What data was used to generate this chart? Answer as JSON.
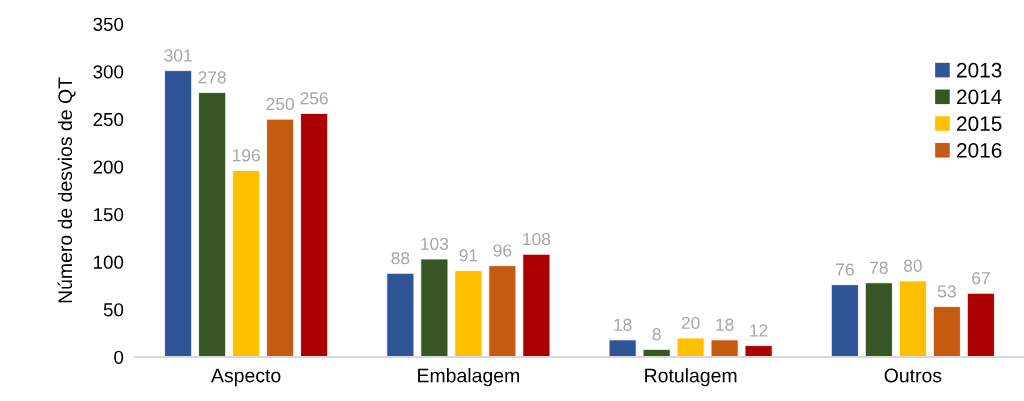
{
  "chart_data": {
    "type": "bar",
    "ylabel": "Número de desvios de QT",
    "categories": [
      "Aspecto",
      "Embalagem",
      "Rotulagem",
      "Outros"
    ],
    "series": [
      {
        "name": "2013",
        "color": "#2f5597",
        "values": [
          301,
          88,
          18,
          76
        ]
      },
      {
        "name": "2014",
        "color": "#375623",
        "values": [
          278,
          103,
          8,
          78
        ]
      },
      {
        "name": "2015",
        "color": "#ffc000",
        "values": [
          196,
          91,
          20,
          80
        ]
      },
      {
        "name": "2016",
        "color": "#c55a11",
        "values": [
          250,
          96,
          18,
          53
        ]
      },
      {
        "color": "#aa0000",
        "values": [
          256,
          108,
          12,
          67
        ]
      }
    ],
    "ylim": [
      0,
      350
    ],
    "yticks": [
      0,
      50,
      100,
      150,
      200,
      250,
      300,
      350
    ],
    "data_labels": true,
    "legend": "top right",
    "grid": false
  }
}
